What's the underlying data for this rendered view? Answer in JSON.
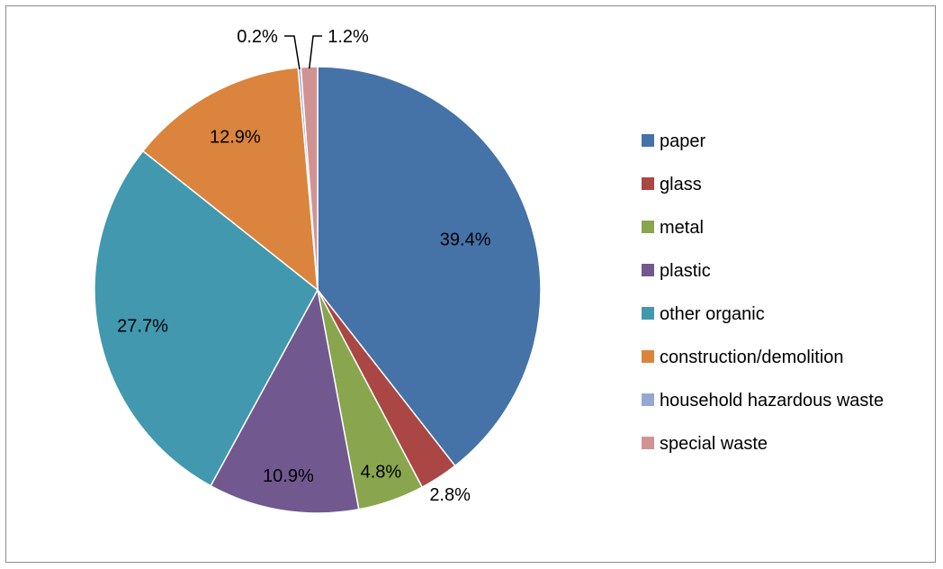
{
  "chart_data": {
    "type": "pie",
    "title": "",
    "start_angle": "12 o'clock",
    "direction": "clockwise",
    "legend_position": "right",
    "slices": [
      {
        "label": "paper",
        "value": 39.4,
        "value_label": "39.4%",
        "color": "#4572A7"
      },
      {
        "label": "glass",
        "value": 2.8,
        "value_label": "2.8%",
        "color": "#AA4643"
      },
      {
        "label": "metal",
        "value": 4.8,
        "value_label": "4.8%",
        "color": "#89A54E"
      },
      {
        "label": "plastic",
        "value": 10.9,
        "value_label": "10.9%",
        "color": "#71588F"
      },
      {
        "label": "other organic",
        "value": 27.7,
        "value_label": "27.7%",
        "color": "#4198AF"
      },
      {
        "label": "construction/demolition",
        "value": 12.9,
        "value_label": "12.9%",
        "color": "#DB843D"
      },
      {
        "label": "household hazardous waste",
        "value": 0.2,
        "value_label": "0.2%",
        "color": "#93A9CF"
      },
      {
        "label": "special waste",
        "value": 1.2,
        "value_label": "1.2%",
        "color": "#D19392"
      }
    ]
  }
}
